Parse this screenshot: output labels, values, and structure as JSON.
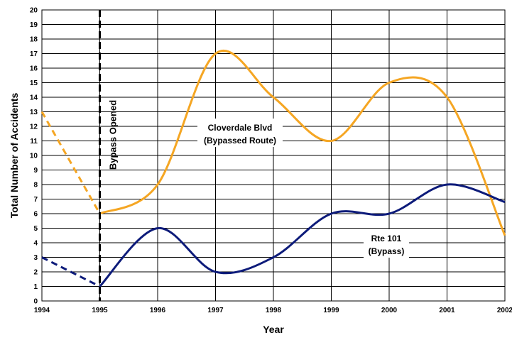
{
  "chart_data": {
    "type": "line",
    "xlabel": "Year",
    "ylabel": "Total Number of Accidents",
    "xlim": [
      1994,
      2002
    ],
    "ylim": [
      0,
      20
    ],
    "x_ticks": [
      "1994",
      "1995",
      "1996",
      "1997",
      "1998",
      "1999",
      "2000",
      "2001",
      "2002"
    ],
    "y_ticks": [
      "0",
      "1",
      "2",
      "3",
      "4",
      "5",
      "6",
      "7",
      "8",
      "9",
      "10",
      "11",
      "12",
      "13",
      "14",
      "15",
      "16",
      "17",
      "18",
      "19",
      "20"
    ],
    "grid": true,
    "smooth": true,
    "series": [
      {
        "name": "Cloverdale Blvd (Bypassed Route)",
        "color": "#F5A623",
        "x": [
          1994,
          1995,
          1996,
          1997,
          1998,
          1999,
          2000,
          2001,
          2002
        ],
        "values": [
          13,
          6,
          8,
          17,
          14,
          11,
          15,
          14,
          4.5
        ],
        "dashed_until_x": 1995
      },
      {
        "name": "Rte 101 (Bypass)",
        "color": "#0D1B7A",
        "x": [
          1994,
          1995,
          1996,
          1997,
          1998,
          1999,
          2000,
          2001,
          2002
        ],
        "values": [
          3,
          1,
          5,
          2,
          3,
          6,
          6,
          8,
          6.8
        ],
        "dashed_until_x": 1995
      }
    ],
    "vertical_marker": {
      "x": 1995,
      "label": "Bypass Opened"
    },
    "annotations": [
      {
        "lines": [
          "Cloverdale Blvd",
          "(Bypassed Route)"
        ]
      },
      {
        "lines": [
          "Rte 101",
          "(Bypass)"
        ]
      }
    ]
  }
}
